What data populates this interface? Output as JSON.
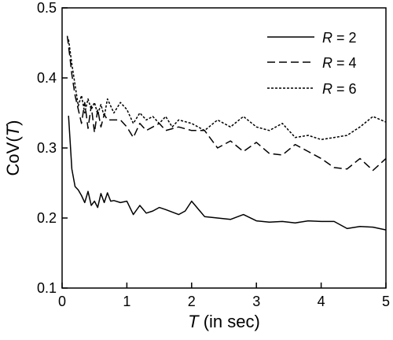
{
  "chart_data": {
    "type": "line",
    "xlabel_italic": "T",
    "xlabel_rest": " (in sec)",
    "ylabel_prefix": "CoV(",
    "ylabel_italic": "T",
    "ylabel_suffix": ")",
    "xlim": [
      0,
      5
    ],
    "ylim": [
      0.1,
      0.5
    ],
    "x_ticks": [
      0,
      1,
      2,
      3,
      4,
      5
    ],
    "x_tick_labels": [
      "0",
      "1",
      "2",
      "3",
      "4",
      "5"
    ],
    "y_ticks": [
      0.1,
      0.2,
      0.3,
      0.4,
      0.5
    ],
    "y_tick_labels": [
      "0.1",
      "0.2",
      "0.3",
      "0.4",
      "0.5"
    ],
    "grid": false,
    "legend_position": "top-right",
    "series": [
      {
        "name_italic": "R",
        "name_rest": " = 2",
        "style": "solid",
        "x": [
          0.1,
          0.15,
          0.2,
          0.25,
          0.3,
          0.35,
          0.4,
          0.45,
          0.5,
          0.55,
          0.6,
          0.65,
          0.7,
          0.75,
          0.8,
          0.9,
          1.0,
          1.1,
          1.2,
          1.3,
          1.4,
          1.5,
          1.6,
          1.8,
          1.9,
          2.0,
          2.2,
          2.4,
          2.6,
          2.8,
          3.0,
          3.2,
          3.4,
          3.6,
          3.8,
          4.0,
          4.2,
          4.4,
          4.6,
          4.8,
          5.0
        ],
        "y": [
          0.346,
          0.27,
          0.245,
          0.24,
          0.232,
          0.222,
          0.238,
          0.218,
          0.224,
          0.215,
          0.235,
          0.222,
          0.236,
          0.224,
          0.225,
          0.222,
          0.224,
          0.205,
          0.218,
          0.207,
          0.21,
          0.215,
          0.212,
          0.205,
          0.21,
          0.224,
          0.202,
          0.2,
          0.198,
          0.205,
          0.196,
          0.194,
          0.195,
          0.193,
          0.196,
          0.195,
          0.195,
          0.185,
          0.188,
          0.187,
          0.183
        ]
      },
      {
        "name_italic": "R",
        "name_rest": " = 4",
        "style": "dashed",
        "x": [
          0.08,
          0.12,
          0.15,
          0.2,
          0.25,
          0.3,
          0.35,
          0.4,
          0.45,
          0.5,
          0.55,
          0.6,
          0.65,
          0.7,
          0.8,
          0.9,
          1.0,
          1.1,
          1.2,
          1.3,
          1.4,
          1.5,
          1.6,
          1.8,
          2.0,
          2.2,
          2.4,
          2.6,
          2.8,
          3.0,
          3.2,
          3.4,
          3.6,
          3.8,
          4.0,
          4.2,
          4.4,
          4.6,
          4.8,
          5.0
        ],
        "y": [
          0.46,
          0.43,
          0.405,
          0.375,
          0.355,
          0.335,
          0.365,
          0.328,
          0.36,
          0.322,
          0.355,
          0.33,
          0.348,
          0.34,
          0.34,
          0.34,
          0.33,
          0.315,
          0.335,
          0.325,
          0.33,
          0.335,
          0.325,
          0.33,
          0.325,
          0.325,
          0.3,
          0.31,
          0.295,
          0.308,
          0.292,
          0.29,
          0.305,
          0.295,
          0.285,
          0.272,
          0.27,
          0.285,
          0.268,
          0.285
        ]
      },
      {
        "name_italic": "R",
        "name_rest": " = 6",
        "style": "dotted",
        "x": [
          0.1,
          0.15,
          0.2,
          0.25,
          0.3,
          0.35,
          0.4,
          0.45,
          0.5,
          0.55,
          0.6,
          0.65,
          0.7,
          0.8,
          0.9,
          1.0,
          1.1,
          1.2,
          1.3,
          1.4,
          1.5,
          1.6,
          1.7,
          1.8,
          2.0,
          2.2,
          2.4,
          2.6,
          2.8,
          3.0,
          3.2,
          3.4,
          3.6,
          3.8,
          4.0,
          4.2,
          4.4,
          4.6,
          4.8,
          5.0
        ],
        "y": [
          0.455,
          0.42,
          0.39,
          0.36,
          0.375,
          0.35,
          0.37,
          0.355,
          0.365,
          0.348,
          0.362,
          0.345,
          0.37,
          0.35,
          0.365,
          0.355,
          0.335,
          0.35,
          0.34,
          0.345,
          0.335,
          0.345,
          0.33,
          0.34,
          0.335,
          0.325,
          0.34,
          0.33,
          0.345,
          0.33,
          0.325,
          0.335,
          0.315,
          0.318,
          0.312,
          0.315,
          0.318,
          0.33,
          0.345,
          0.337
        ]
      }
    ]
  }
}
